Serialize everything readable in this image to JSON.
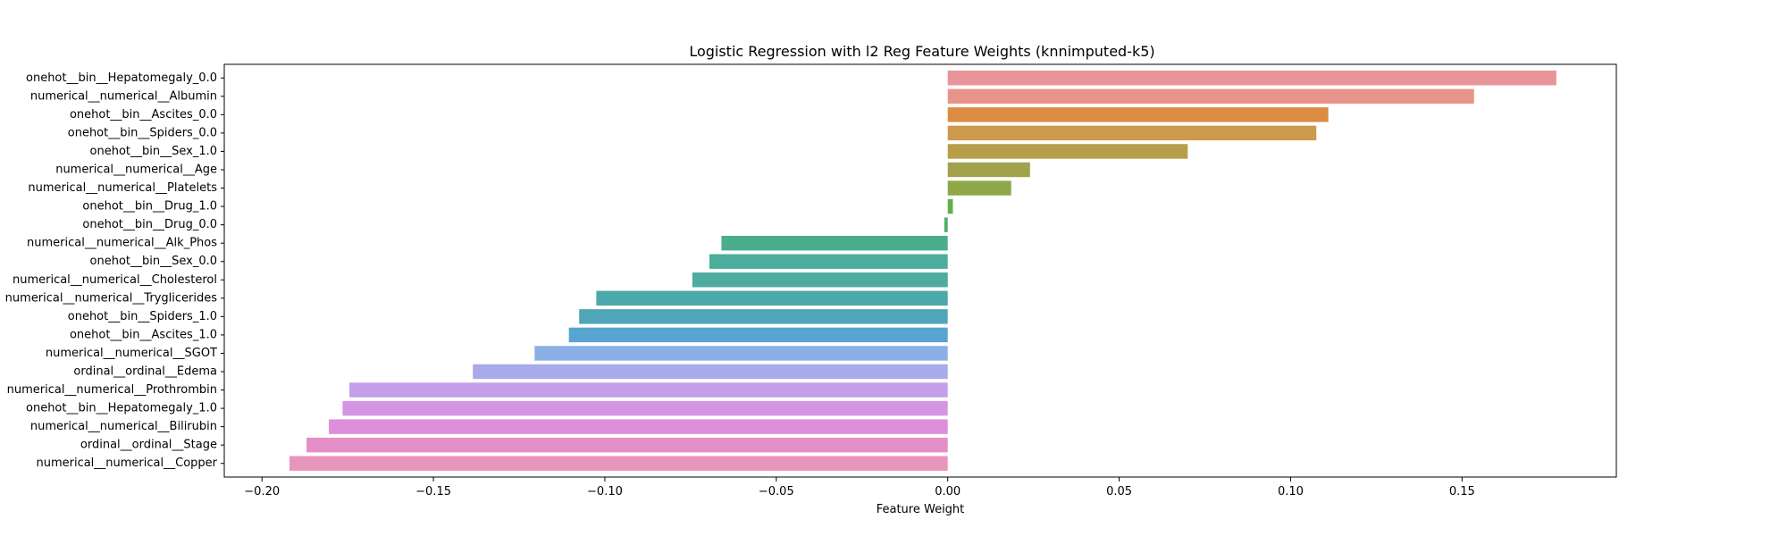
{
  "chart_data": {
    "type": "bar",
    "orientation": "horizontal",
    "title": "Logistic Regression with l2 Reg Feature Weights (knnimputed-k5)",
    "xlabel": "Feature Weight",
    "ylabel": "",
    "xlim": [
      -0.211,
      0.195
    ],
    "xticks": [
      -0.2,
      -0.15,
      -0.1,
      -0.05,
      0.0,
      0.05,
      0.1,
      0.15
    ],
    "xtick_labels": [
      "−0.20",
      "−0.15",
      "−0.10",
      "−0.05",
      "0.00",
      "0.05",
      "0.10",
      "0.15"
    ],
    "grid": false,
    "legend": "none",
    "categories": [
      "onehot__bin__Hepatomegaly_0.0",
      "numerical__numerical__Albumin",
      "onehot__bin__Ascites_0.0",
      "onehot__bin__Spiders_0.0",
      "onehot__bin__Sex_1.0",
      "numerical__numerical__Age",
      "numerical__numerical__Platelets",
      "onehot__bin__Drug_1.0",
      "onehot__bin__Drug_0.0",
      "numerical__numerical__Alk_Phos",
      "onehot__bin__Sex_0.0",
      "numerical__numerical__Cholesterol",
      "numerical__numerical__Tryglicerides",
      "onehot__bin__Spiders_1.0",
      "onehot__bin__Ascites_1.0",
      "numerical__numerical__SGOT",
      "ordinal__ordinal__Edema",
      "numerical__numerical__Prothrombin",
      "onehot__bin__Hepatomegaly_1.0",
      "numerical__numerical__Bilirubin",
      "ordinal__ordinal__Stage",
      "numerical__numerical__Copper"
    ],
    "values": [
      0.1775,
      0.1535,
      0.111,
      0.1075,
      0.07,
      0.024,
      0.0185,
      0.0015,
      -0.001,
      -0.066,
      -0.0695,
      -0.0745,
      -0.1025,
      -0.1075,
      -0.1105,
      -0.1205,
      -0.1385,
      -0.1745,
      -0.1765,
      -0.1805,
      -0.187,
      -0.192
    ],
    "colors": [
      "#e8949a",
      "#e8948a",
      "#db8b42",
      "#cc9a4c",
      "#b89e4a",
      "#a2a24a",
      "#8ea848",
      "#62ae4c",
      "#4daf6a",
      "#4aae8c",
      "#4bae9c",
      "#4dab9f",
      "#4da8ac",
      "#4ea6b8",
      "#57a4d0",
      "#8ab0e6",
      "#a8aaec",
      "#c59eea",
      "#d495e3",
      "#de8fdb",
      "#e58fc8",
      "#e895bd"
    ]
  }
}
